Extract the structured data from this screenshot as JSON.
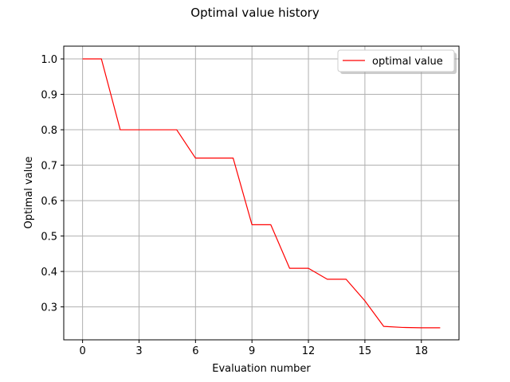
{
  "chart_data": {
    "type": "line",
    "title": "Optimal value history",
    "xlabel": "Evaluation number",
    "ylabel": "Optimal value",
    "xlim": [
      -1,
      20
    ],
    "ylim": [
      0.207,
      1.036
    ],
    "xticks": [
      0,
      3,
      6,
      9,
      12,
      15,
      18
    ],
    "yticks": [
      0.3,
      0.4,
      0.5,
      0.6,
      0.7,
      0.8,
      0.9,
      1.0
    ],
    "xtick_labels": [
      "0",
      "3",
      "6",
      "9",
      "12",
      "15",
      "18"
    ],
    "ytick_labels": [
      "0.3",
      "0.4",
      "0.5",
      "0.6",
      "0.7",
      "0.8",
      "0.9",
      "1.0"
    ],
    "grid": true,
    "legend_position": "top-right",
    "series": [
      {
        "name": "optimal value",
        "color": "#ff0000",
        "x": [
          0,
          1,
          2,
          3,
          4,
          5,
          6,
          7,
          8,
          9,
          10,
          11,
          12,
          13,
          14,
          15,
          16,
          17,
          18,
          19
        ],
        "values": [
          1.0,
          1.0,
          0.8,
          0.8,
          0.8,
          0.8,
          0.72,
          0.72,
          0.72,
          0.532,
          0.532,
          0.409,
          0.409,
          0.378,
          0.378,
          0.317,
          0.245,
          0.242,
          0.241,
          0.241
        ]
      }
    ]
  }
}
